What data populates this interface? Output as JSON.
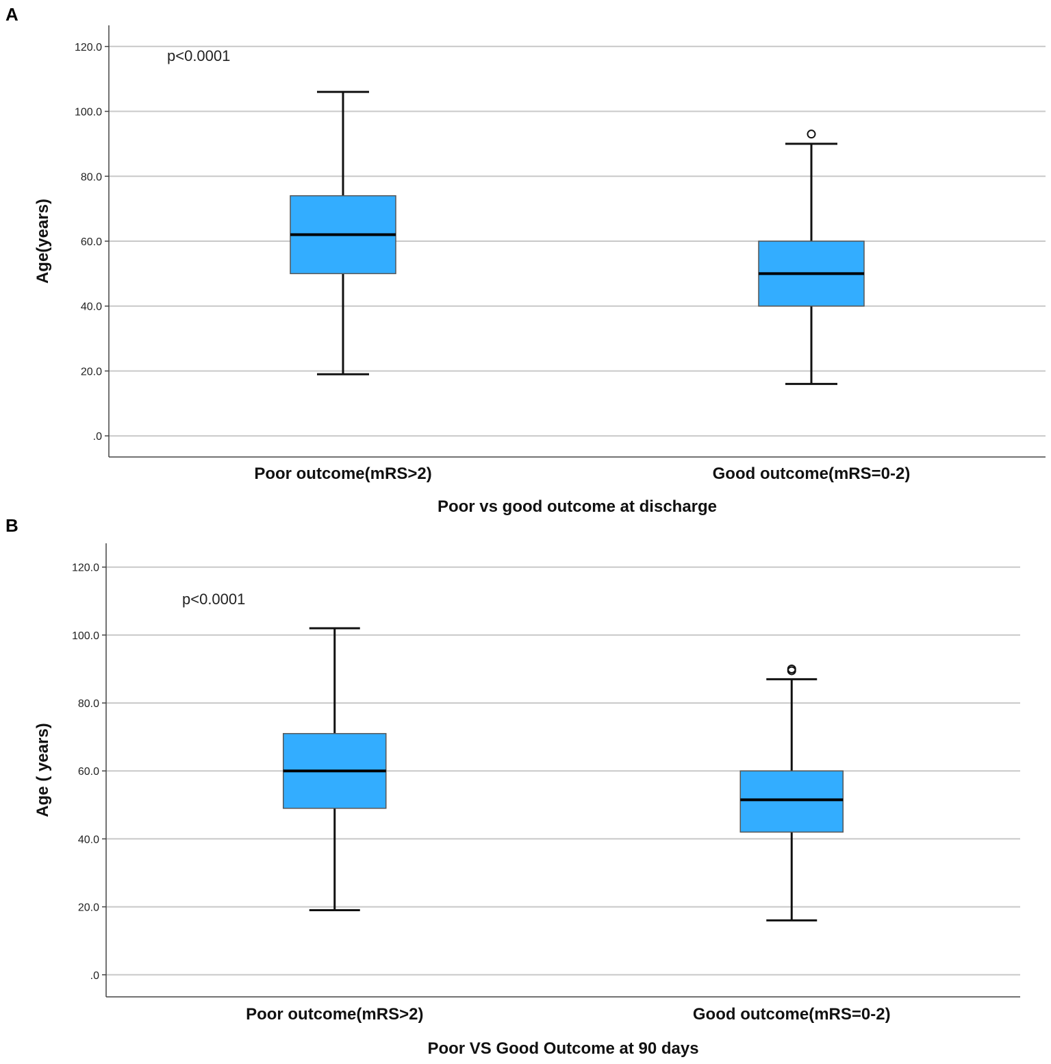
{
  "colors": {
    "box_fill": "#33adff",
    "box_edge": "#555555",
    "whisker": "#111111",
    "median": "#000000",
    "grid": "#c8c8c8",
    "axis": "#444444"
  },
  "chart_data": [
    {
      "type": "box",
      "panel": "A",
      "annotation": "p<0.0001",
      "xlabel": "Poor vs good outcome at discharge",
      "ylabel": "Age(years)",
      "ylim": [
        -6.5,
        126.5
      ],
      "yticks": [
        0,
        20,
        40,
        60,
        80,
        100,
        120
      ],
      "ytick_labels": [
        ".0",
        "20.0",
        "40.0",
        "60.0",
        "80.0",
        "100.0",
        "120.0"
      ],
      "grid": true,
      "categories": [
        "Poor outcome(mRS>2)",
        "Good outcome(mRS=0-2)"
      ],
      "boxes": [
        {
          "min": 19,
          "q1": 50,
          "median": 62,
          "q3": 74,
          "max": 106,
          "outliers": []
        },
        {
          "min": 16,
          "q1": 40,
          "median": 50,
          "q3": 60,
          "max": 90,
          "outliers": [
            93
          ]
        }
      ]
    },
    {
      "type": "box",
      "panel": "B",
      "annotation": "p<0.0001",
      "xlabel": "Poor VS Good Outcome at 90 days",
      "ylabel": "Age ( years)",
      "ylim": [
        -6.5,
        127
      ],
      "yticks": [
        0,
        20,
        40,
        60,
        80,
        100,
        120
      ],
      "ytick_labels": [
        ".0",
        "20.0",
        "40.0",
        "60.0",
        "80.0",
        "100.0",
        "120.0"
      ],
      "grid": true,
      "categories": [
        "Poor outcome(mRS>2)",
        "Good outcome(mRS=0-2)"
      ],
      "boxes": [
        {
          "min": 19,
          "q1": 49,
          "median": 60,
          "q3": 71,
          "max": 102,
          "outliers": []
        },
        {
          "min": 16,
          "q1": 42,
          "median": 51.5,
          "q3": 60,
          "max": 87,
          "outliers": [
            89.5,
            90
          ]
        }
      ]
    }
  ]
}
